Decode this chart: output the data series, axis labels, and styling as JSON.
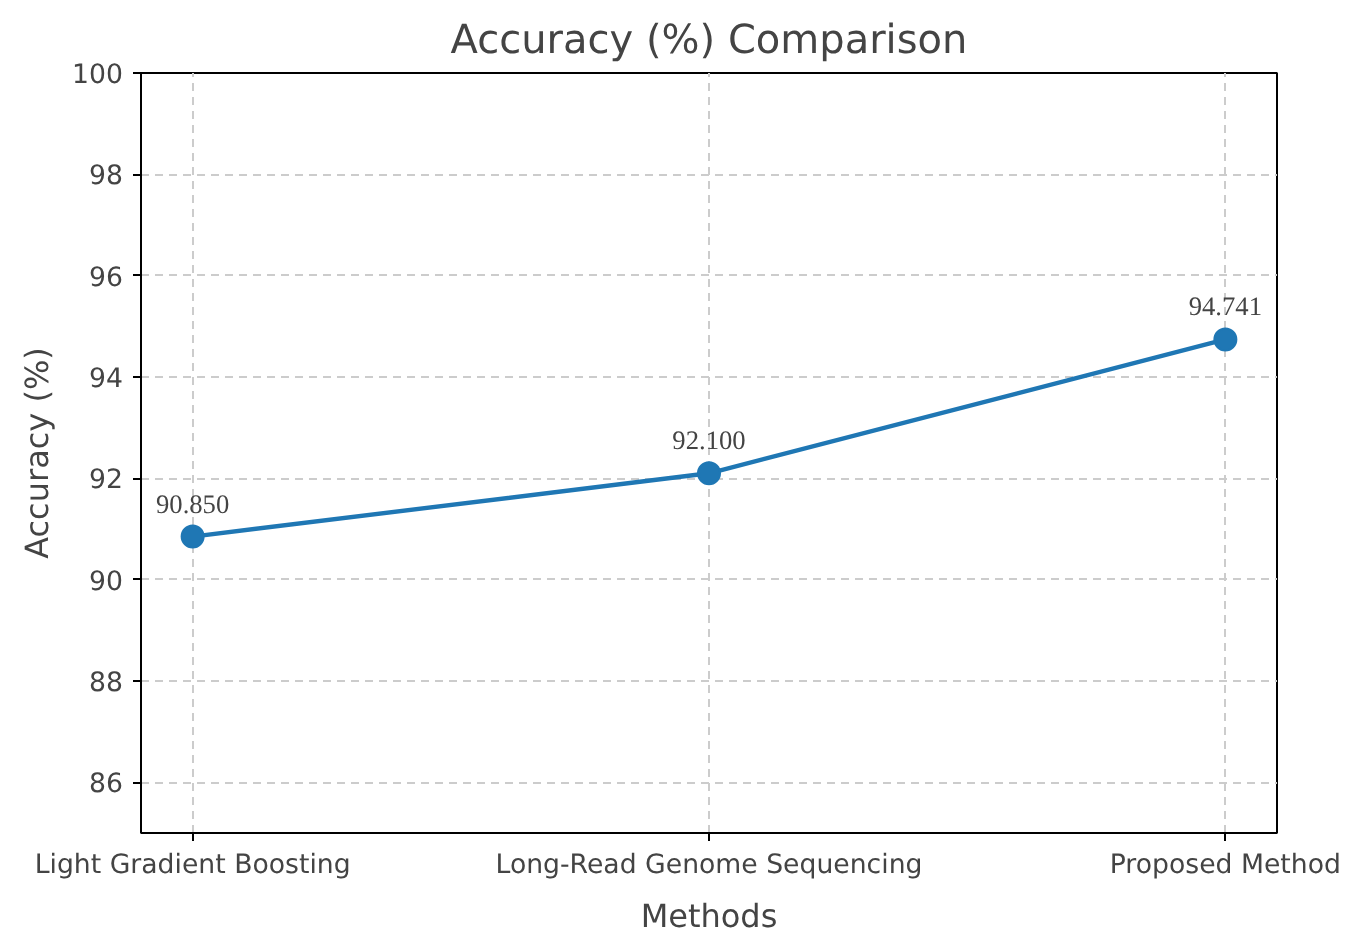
{
  "chart_data": {
    "type": "line",
    "title": "Accuracy (%) Comparison",
    "xlabel": "Methods",
    "ylabel": "Accuracy (%)",
    "categories": [
      "Light Gradient Boosting",
      "Long-Read Genome Sequencing",
      "Proposed Method"
    ],
    "series": [
      {
        "color": "#1f77b4",
        "values": [
          90.85,
          92.1,
          94.741
        ],
        "value_labels": [
          "90.850",
          "92.100",
          "94.741"
        ]
      }
    ],
    "ylim": [
      85,
      100
    ],
    "yticks": [
      86,
      88,
      90,
      92,
      94,
      96,
      98,
      100
    ],
    "grid": true,
    "marker": "circle",
    "line_style": "solid"
  }
}
